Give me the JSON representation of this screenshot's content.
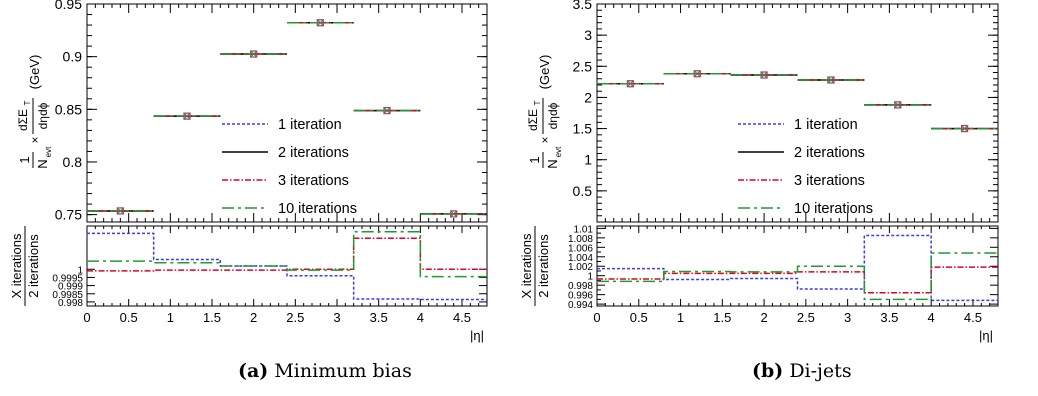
{
  "figure": {
    "legend_entries": [
      {
        "label": "1 iteration",
        "color": "#3a3aff",
        "dash": "3,2"
      },
      {
        "label": "2 iterations",
        "color": "#000000",
        "dash": ""
      },
      {
        "label": "3 iterations",
        "color": "#e0002a",
        "dash": "6,2,1.5,2"
      },
      {
        "label": "10 iterations",
        "color": "#1b9e2e",
        "dash": "12,4,3,4"
      }
    ],
    "ylabel_top": {
      "pre": "1",
      "den": "N",
      "den_sub": "evt",
      "times": "×",
      "num": "dΣE",
      "num_sub": "T",
      "den2": "dηdϕ",
      "unit": "(GeV)"
    },
    "ylabel_bottom": {
      "num": "X iterations",
      "den": "2 iterations"
    },
    "xlabel": "|η|"
  },
  "panels": [
    {
      "caption_letter": "(a)",
      "caption_text": "Minimum bias",
      "chart_data": {
        "type": "line",
        "step_bins": [
          0,
          0.8,
          1.6,
          2.4,
          3.2,
          4.0,
          4.8
        ],
        "series": [
          {
            "name": "1 iteration",
            "values": [
              0.7535,
              0.8435,
              0.9025,
              0.9322,
              0.8488,
              0.7507
            ]
          },
          {
            "name": "2 iterations",
            "values": [
              0.7535,
              0.8435,
              0.9025,
              0.9322,
              0.8488,
              0.7507
            ]
          },
          {
            "name": "3 iterations",
            "values": [
              0.7535,
              0.8435,
              0.9025,
              0.9322,
              0.8488,
              0.7507
            ]
          },
          {
            "name": "10 iterations",
            "values": [
              0.7535,
              0.8435,
              0.9025,
              0.9322,
              0.8488,
              0.7507
            ]
          }
        ],
        "ratio_series": [
          {
            "name": "1 iteration",
            "values": [
              1.0022,
              1.0006,
              1.0002,
              0.9996,
              0.99818,
              0.99815
            ]
          },
          {
            "name": "3 iterations",
            "values": [
              0.9999,
              0.99995,
              0.99995,
              1.0,
              1.0019,
              1.0
            ]
          },
          {
            "name": "10 iterations",
            "values": [
              1.0005,
              1.0004,
              1.0002,
              0.99995,
              1.0023,
              0.99955
            ]
          }
        ],
        "xlim": [
          0,
          4.8
        ],
        "ylim": [
          0.743,
          0.95
        ],
        "ratio_ylim": [
          0.99775,
          1.00265
        ],
        "x_ticks": [
          0,
          0.5,
          1,
          1.5,
          2,
          2.5,
          3,
          3.5,
          4,
          4.5
        ],
        "y_ticks": [
          0.75,
          0.8,
          0.85,
          0.9,
          0.95
        ],
        "ratio_ticks": [
          0.998,
          0.9985,
          0.999,
          0.9995,
          1
        ],
        "xlabel": "|η|"
      }
    },
    {
      "caption_letter": "(b)",
      "caption_text": "Di-jets",
      "chart_data": {
        "type": "line",
        "step_bins": [
          0,
          0.8,
          1.6,
          2.4,
          3.2,
          4.0,
          4.8
        ],
        "series": [
          {
            "name": "1 iteration",
            "values": [
              2.22,
              2.38,
              2.36,
              2.28,
              1.88,
              1.5
            ]
          },
          {
            "name": "2 iterations",
            "values": [
              2.22,
              2.38,
              2.36,
              2.28,
              1.88,
              1.5
            ]
          },
          {
            "name": "3 iterations",
            "values": [
              2.22,
              2.38,
              2.36,
              2.28,
              1.88,
              1.5
            ]
          },
          {
            "name": "10 iterations",
            "values": [
              2.22,
              2.38,
              2.36,
              2.28,
              1.88,
              1.5
            ]
          }
        ],
        "ratio_series": [
          {
            "name": "1 iteration",
            "values": [
              1.0015,
              0.9992,
              0.9994,
              0.9972,
              1.0085,
              0.9948
            ]
          },
          {
            "name": "3 iterations",
            "values": [
              0.9993,
              1.0005,
              1.0005,
              1.0008,
              0.9964,
              1.0018
            ]
          },
          {
            "name": "10 iterations",
            "values": [
              0.9988,
              1.0009,
              1.0008,
              1.002,
              0.995,
              1.0048
            ]
          }
        ],
        "xlim": [
          0,
          4.8
        ],
        "ylim": [
          0,
          3.5
        ],
        "ratio_ylim": [
          0.9936,
          1.0105
        ],
        "x_ticks": [
          0,
          0.5,
          1,
          1.5,
          2,
          2.5,
          3,
          3.5,
          4,
          4.5
        ],
        "y_ticks": [
          0.5,
          1,
          1.5,
          2,
          2.5,
          3,
          3.5
        ],
        "ratio_ticks": [
          0.994,
          0.996,
          0.998,
          1,
          1.002,
          1.004,
          1.006,
          1.008,
          1.01
        ],
        "ratio_ticks_minor": [
          0.995,
          0.997,
          0.999,
          1.001,
          1.003,
          1.005,
          1.007,
          1.009
        ],
        "xlabel": "|η|"
      }
    }
  ]
}
